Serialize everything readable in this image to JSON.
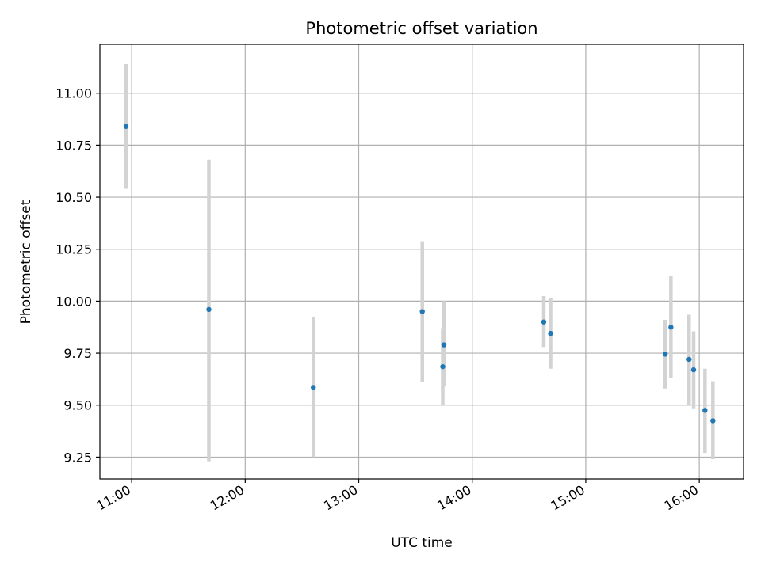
{
  "chart_data": {
    "type": "scatter",
    "title": "Photometric offset variation",
    "xlabel": "UTC time",
    "ylabel": "Photometric offset",
    "grid": true,
    "xlim": [
      10.72,
      16.39
    ],
    "ylim": [
      9.145,
      11.235
    ],
    "x_ticks": [
      {
        "value": 11,
        "label": "11:00"
      },
      {
        "value": 12,
        "label": "12:00"
      },
      {
        "value": 13,
        "label": "13:00"
      },
      {
        "value": 14,
        "label": "14:00"
      },
      {
        "value": 15,
        "label": "15:00"
      },
      {
        "value": 16,
        "label": "16:00"
      }
    ],
    "y_ticks": [
      {
        "value": 9.25,
        "label": "9.25"
      },
      {
        "value": 9.5,
        "label": "9.50"
      },
      {
        "value": 9.75,
        "label": "9.75"
      },
      {
        "value": 10.0,
        "label": "10.00"
      },
      {
        "value": 10.25,
        "label": "10.25"
      },
      {
        "value": 10.5,
        "label": "10.50"
      },
      {
        "value": 10.75,
        "label": "10.75"
      },
      {
        "value": 11.0,
        "label": "11.00"
      }
    ],
    "series": [
      {
        "name": "offset",
        "marker_color": "#1f77b4",
        "errorbar_color": "#d3d3d3",
        "points": [
          {
            "x": 10.95,
            "y": 10.84,
            "yerr_low": 10.54,
            "yerr_high": 11.14
          },
          {
            "x": 11.68,
            "y": 9.96,
            "yerr_low": 9.23,
            "yerr_high": 10.68
          },
          {
            "x": 12.6,
            "y": 9.585,
            "yerr_low": 9.25,
            "yerr_high": 9.925
          },
          {
            "x": 13.56,
            "y": 9.95,
            "yerr_low": 9.61,
            "yerr_high": 10.285
          },
          {
            "x": 13.75,
            "y": 9.79,
            "yerr_low": 9.59,
            "yerr_high": 10.0
          },
          {
            "x": 13.74,
            "y": 9.685,
            "yerr_low": 9.5,
            "yerr_high": 9.87
          },
          {
            "x": 14.63,
            "y": 9.9,
            "yerr_low": 9.78,
            "yerr_high": 10.025
          },
          {
            "x": 14.69,
            "y": 9.845,
            "yerr_low": 9.675,
            "yerr_high": 10.015
          },
          {
            "x": 15.7,
            "y": 9.745,
            "yerr_low": 9.58,
            "yerr_high": 9.91
          },
          {
            "x": 15.75,
            "y": 9.875,
            "yerr_low": 9.63,
            "yerr_high": 10.12
          },
          {
            "x": 15.91,
            "y": 9.72,
            "yerr_low": 9.5,
            "yerr_high": 9.935
          },
          {
            "x": 15.95,
            "y": 9.67,
            "yerr_low": 9.485,
            "yerr_high": 9.855
          },
          {
            "x": 16.05,
            "y": 9.475,
            "yerr_low": 9.27,
            "yerr_high": 9.675
          },
          {
            "x": 16.12,
            "y": 9.425,
            "yerr_low": 9.24,
            "yerr_high": 9.615
          }
        ]
      }
    ]
  }
}
